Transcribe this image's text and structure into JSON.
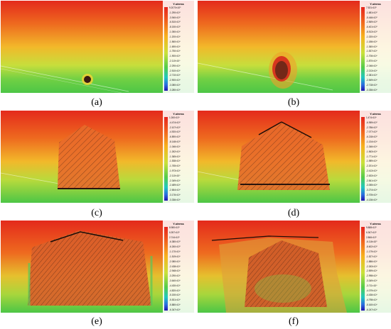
{
  "legend_title": "Y-stress",
  "colors": {
    "red": "#e8231c",
    "orange": "#f07a1e",
    "yellow": "#e6e03c",
    "green": "#56cc40",
    "dark_excavation": "#3a1a12"
  },
  "panels": [
    {
      "label": "(a)",
      "ticks": [
        "9.2070×10⁵",
        "-1.290×10⁵",
        "-3.940×10⁵",
        "-6.510×10⁵",
        "-8.150×10⁵",
        "-1.050×10⁶",
        "-1.200×10⁶",
        "-1.560×10⁶",
        "-1.690×10⁶",
        "-1.750×10⁶",
        "-1.900×10⁶",
        "-2.110×10⁶",
        "-2.290×10⁶",
        "-2.510×10⁶",
        "-2.710×10⁶",
        "-2.900×10⁶",
        "-3.080×10⁶",
        "-3.280×10⁶"
      ]
    },
    {
      "label": "(b)",
      "ticks": [
        "7.531×10⁵",
        "-1.681×10⁵",
        "-5.446×10⁵",
        "-2.569×10⁵",
        "-6.401×10⁵",
        "-8.513×10⁵",
        "-1.020×10⁶",
        "-1.186×10⁶",
        "-1.360×10⁶",
        "-1.537×10⁶",
        "-1.706×10⁶",
        "-1.870×10⁶",
        "-2.046×10⁶",
        "-2.213×10⁶",
        "-2.381×10⁶",
        "-2.549×10⁶",
        "-2.718×10⁶",
        "-3.336×10⁶"
      ]
    },
    {
      "label": "(c)",
      "ticks": [
        "1.260×10⁶",
        "-4.474×10⁵",
        "-2.107×10⁵",
        "-4.920×10⁵",
        "-6.890×10⁵",
        "-8.148×10⁵",
        "-1.046×10⁶",
        "-1.262×10⁶",
        "-1.365×10⁶",
        "-1.538×10⁶",
        "-1.765×10⁶",
        "-1.973×10⁶",
        "-2.110×10⁶",
        "-2.349×10⁶",
        "-2.489×10⁶",
        "-2.654×10⁶",
        "-3.176×10⁶",
        "-3.336×10⁶"
      ]
    },
    {
      "label": "(d)",
      "ticks": [
        "1.474×10⁶",
        "-6.959×10⁵",
        "-2.786×10⁵",
        "-7.077×10⁵",
        "-6.218×10⁵",
        "-1.134×10⁶",
        "-1.346×10⁶",
        "-1.563×10⁶",
        "-1.771×10⁶",
        "-1.989×10⁶",
        "-2.201×10⁶",
        "-2.413×10⁶",
        "-2.633×10⁶",
        "-2.841×10⁶",
        "-3.055×10⁶",
        "-3.274×10⁶",
        "-3.705×10⁶",
        "-4.136×10⁶"
      ]
    },
    {
      "label": "(e)",
      "ticks": [
        "8.980×10⁵",
        "6.397×10⁵",
        "2.744×10⁵",
        "-6.380×10⁵",
        "-6.260×10⁵",
        "-1.170×10⁶",
        "-1.519×10⁶",
        "-2.080×10⁶",
        "-2.438×10⁶",
        "-2.948×10⁶",
        "-3.290×10⁶",
        "-3.640×10⁶",
        "-4.430×10⁶",
        "-4.820×10⁶",
        "-5.150×10⁶",
        "-5.531×10⁶",
        "-5.880×10⁶",
        "-6.347×10⁶"
      ]
    },
    {
      "label": "(f)",
      "ticks": [
        "9.888×10⁵",
        "6.367×10⁵",
        "2.866×10⁵",
        "-6.116×10⁵",
        "-8.602×10⁵",
        "-1.179×10⁶",
        "-1.527×10⁶",
        "-1.886×10⁶",
        "-2.263×10⁶",
        "-2.599×10⁶",
        "-2.998×10⁶",
        "-3.349×10⁶",
        "-3.711×10⁶",
        "-4.079×10⁶",
        "-4.436×10⁶",
        "-4.798×10⁶",
        "-5.160×10⁶",
        "-6.247×10⁶"
      ]
    }
  ]
}
